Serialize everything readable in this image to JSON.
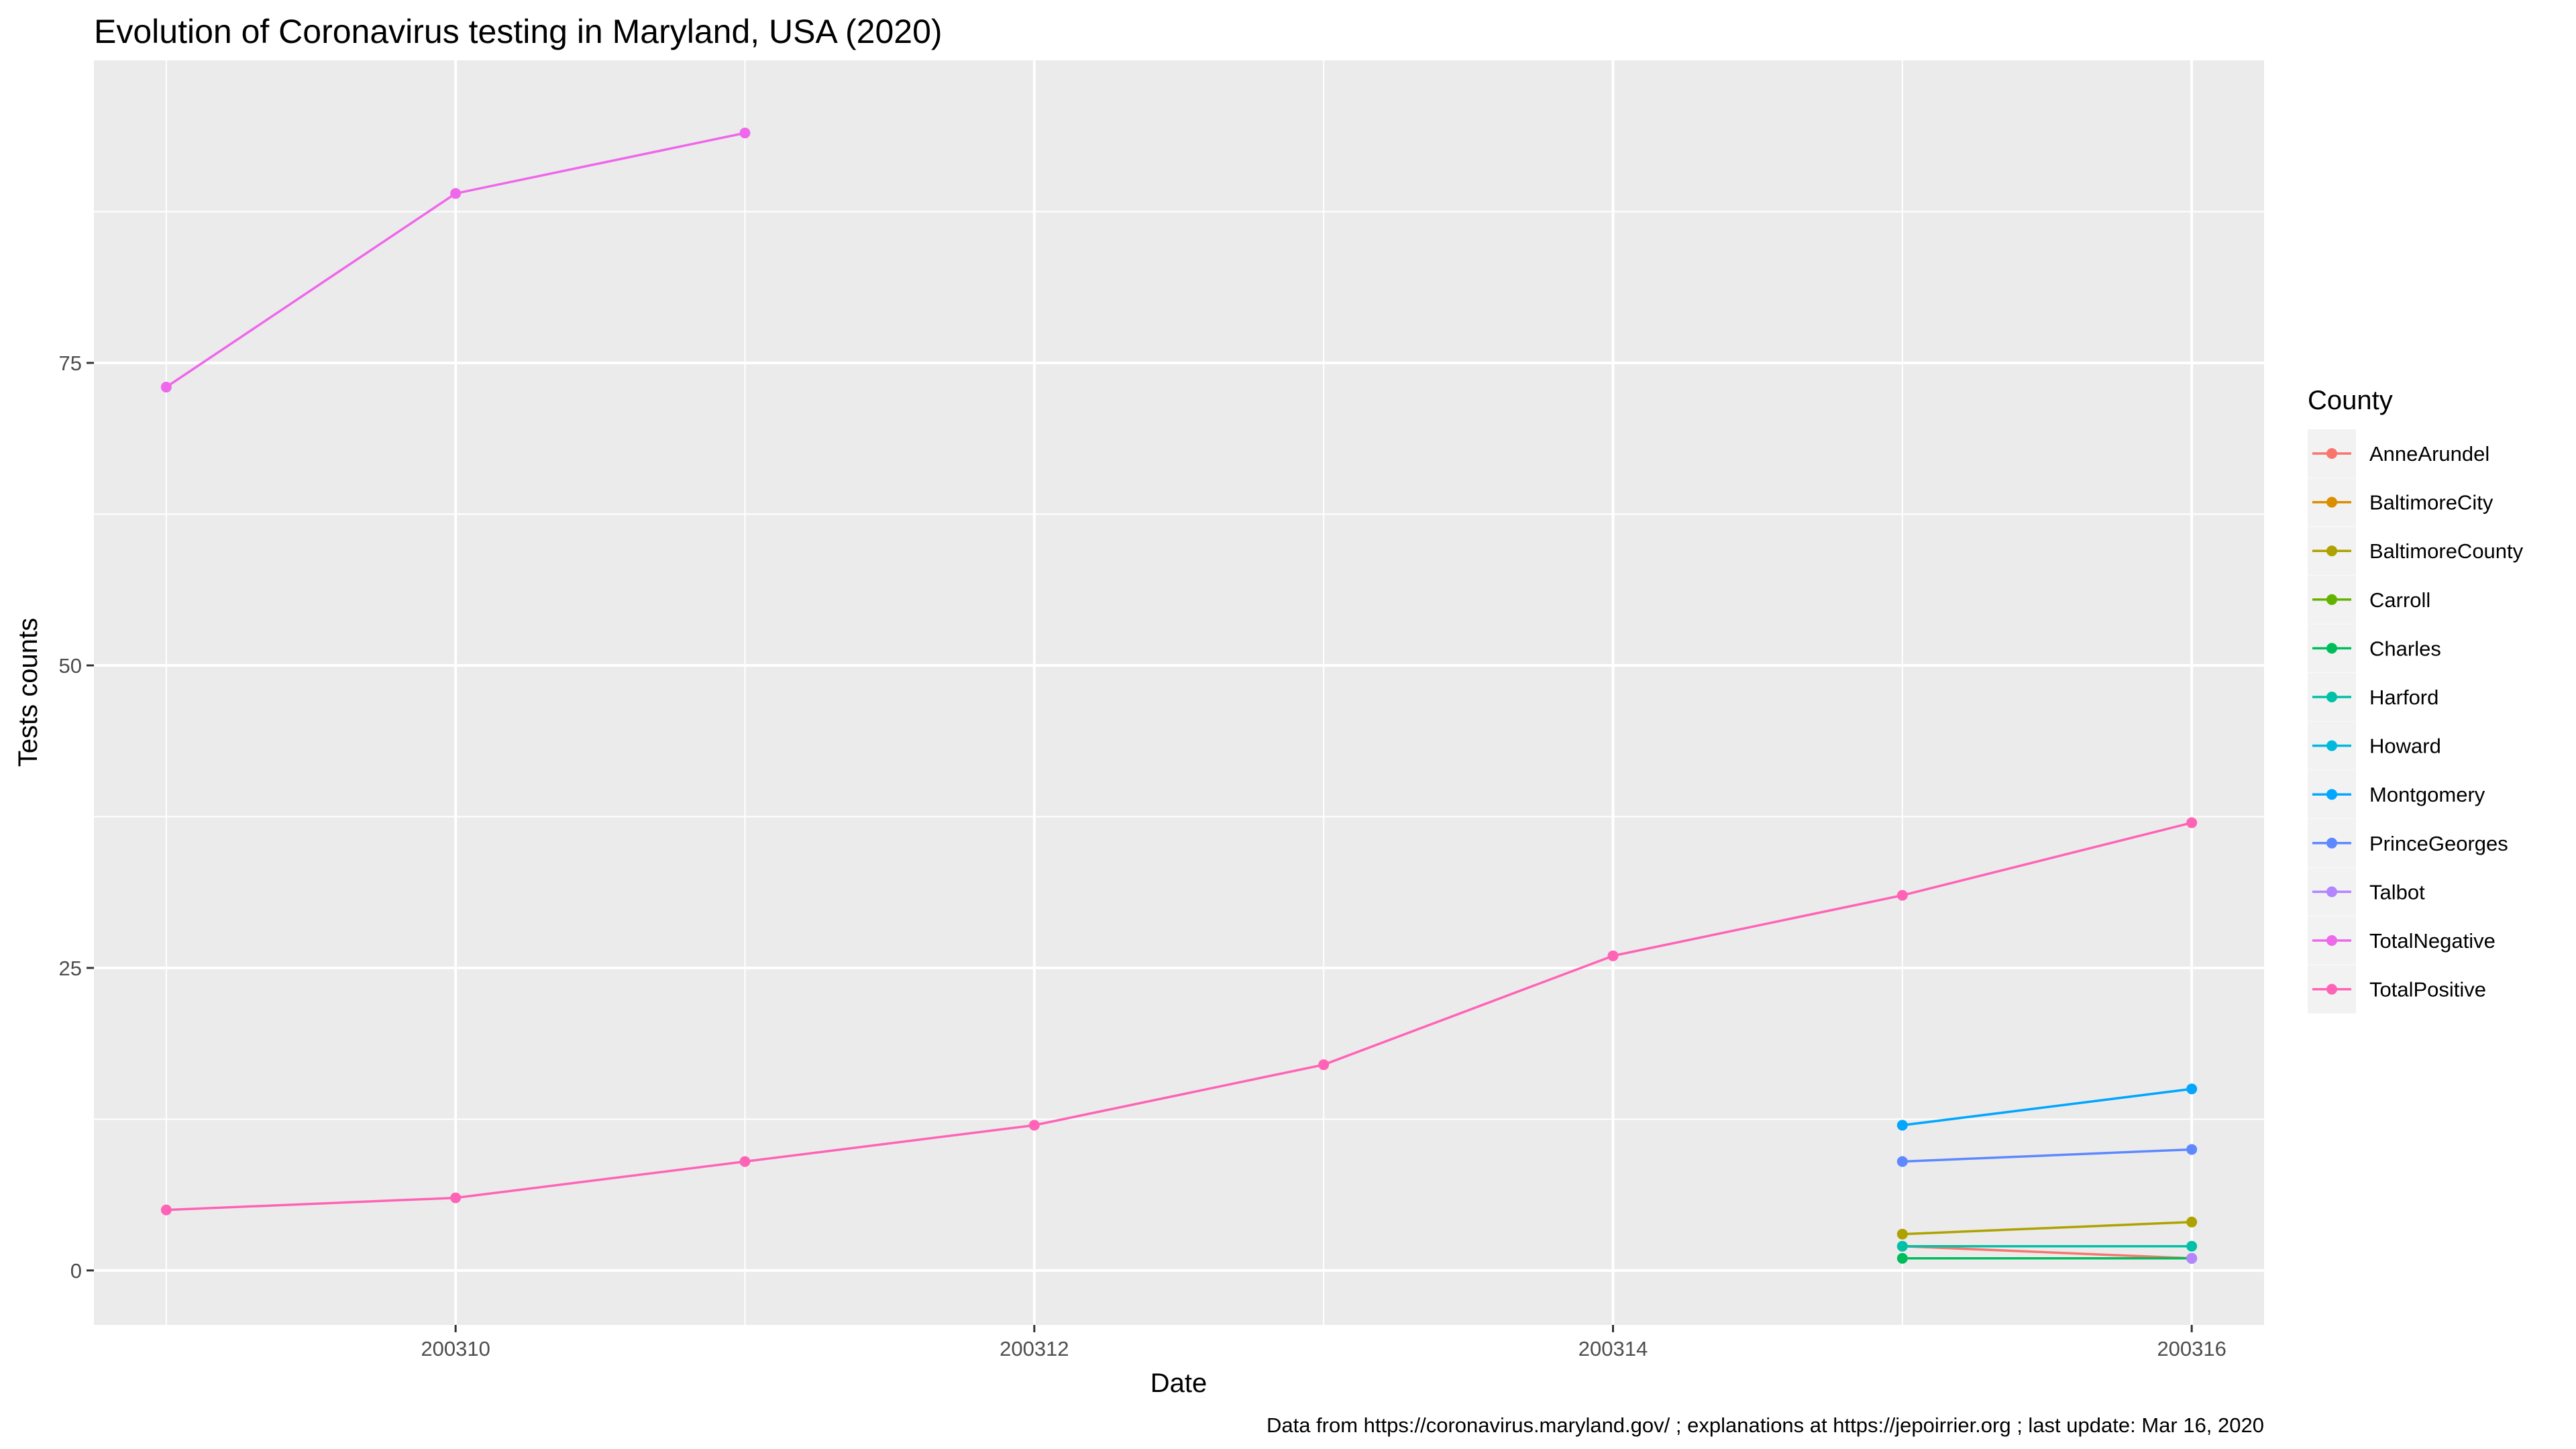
{
  "chart_data": {
    "type": "line",
    "title": "Evolution of Coronavirus testing in Maryland, USA (2020)",
    "xlabel": "Date",
    "ylabel": "Tests counts",
    "caption": "Data from https://coronavirus.maryland.gov/ ; explanations at https://jepoirrier.org ; last update: Mar 16, 2020",
    "xlim": [
      200308.75,
      200316.25
    ],
    "ylim": [
      -4.5,
      100
    ],
    "x_ticks": [
      200310,
      200312,
      200314,
      200316
    ],
    "x_tick_labels": [
      "200310",
      "200312",
      "200314",
      "200316"
    ],
    "x_minor": [
      200309,
      200311,
      200313,
      200315
    ],
    "y_ticks": [
      0,
      25,
      50,
      75
    ],
    "y_tick_labels": [
      "0",
      "25",
      "50",
      "75"
    ],
    "y_minor": [
      12.5,
      37.5,
      62.5,
      87.5
    ],
    "grid": true,
    "legend_title": "County",
    "legend_position": "right",
    "series": [
      {
        "name": "AnneArundel",
        "color": "#F8766D",
        "x": [
          200315,
          200316
        ],
        "values": [
          2,
          1
        ]
      },
      {
        "name": "BaltimoreCity",
        "color": "#DB8E00",
        "x": [],
        "values": []
      },
      {
        "name": "BaltimoreCounty",
        "color": "#AEA200",
        "x": [
          200315,
          200316
        ],
        "values": [
          3,
          4
        ]
      },
      {
        "name": "Carroll",
        "color": "#64B200",
        "x": [],
        "values": []
      },
      {
        "name": "Charles",
        "color": "#00BD5C",
        "x": [
          200315,
          200316
        ],
        "values": [
          1,
          1
        ]
      },
      {
        "name": "Harford",
        "color": "#00C1A7",
        "x": [
          200315,
          200316
        ],
        "values": [
          2,
          2
        ]
      },
      {
        "name": "Howard",
        "color": "#00BADE",
        "x": [],
        "values": []
      },
      {
        "name": "Montgomery",
        "color": "#00A6FF",
        "x": [
          200315,
          200316
        ],
        "values": [
          12,
          15
        ]
      },
      {
        "name": "PrinceGeorges",
        "color": "#5E88FF",
        "x": [
          200315,
          200316
        ],
        "values": [
          9,
          10
        ]
      },
      {
        "name": "Talbot",
        "color": "#B385FF",
        "x": [
          200316
        ],
        "values": [
          1
        ]
      },
      {
        "name": "TotalNegative",
        "color": "#EF67EB",
        "x": [
          200309,
          200310,
          200311
        ],
        "values": [
          73,
          89,
          94
        ]
      },
      {
        "name": "TotalPositive",
        "color": "#FF63B6",
        "x": [
          200309,
          200310,
          200311,
          200312,
          200313,
          200314,
          200315,
          200316
        ],
        "values": [
          5,
          6,
          9,
          12,
          17,
          26,
          31,
          37
        ]
      }
    ]
  }
}
